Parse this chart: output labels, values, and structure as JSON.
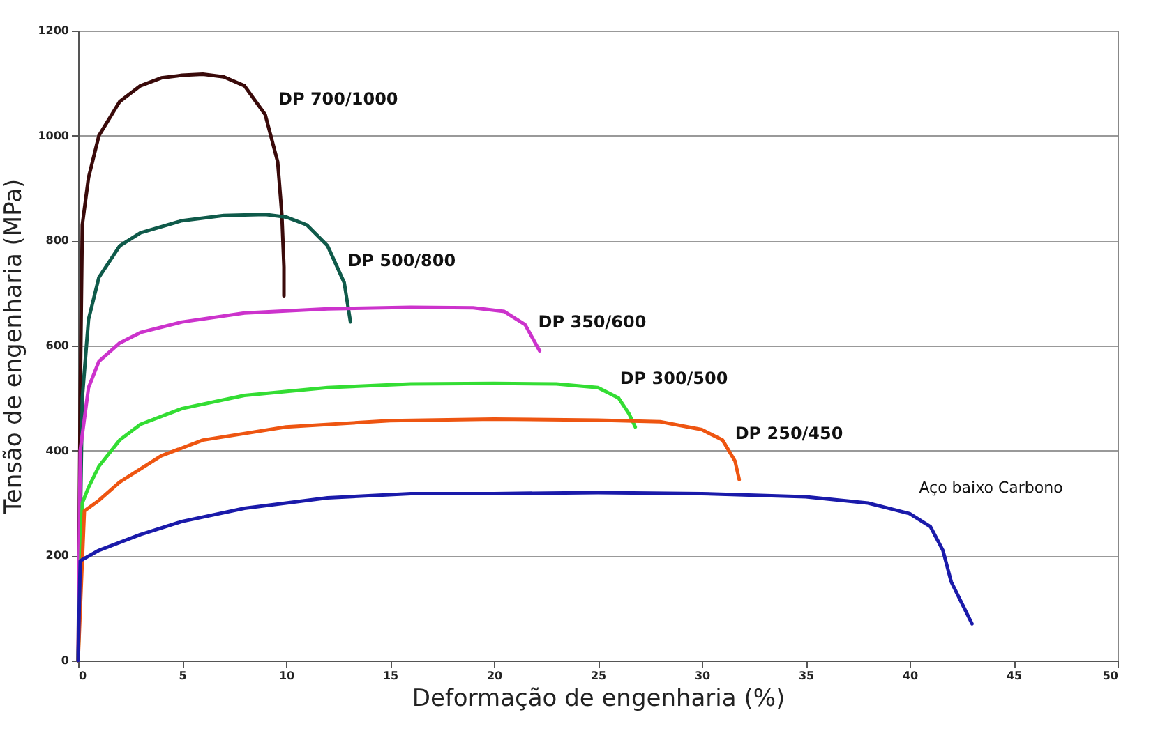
{
  "chart_data": {
    "type": "line",
    "xlabel": "Deformação de engenharia (%)",
    "ylabel": "Tensão de engenharia (MPa)",
    "xlim": [
      0,
      50
    ],
    "xticks": [
      0,
      5,
      10,
      15,
      20,
      25,
      30,
      35,
      40,
      45,
      50
    ],
    "ylim": [
      0,
      1200
    ],
    "yticks": [
      0,
      200,
      400,
      600,
      800,
      1000,
      1200
    ],
    "grid": "y",
    "legend": false,
    "marker": "none",
    "line_style": "solid",
    "series": [
      {
        "name": "DP 700/1000",
        "color": "#3a0a0a",
        "x": [
          0,
          0.1,
          0.2,
          0.5,
          1,
          2,
          3,
          4,
          5,
          6,
          7,
          8,
          9,
          9.6,
          9.8,
          9.9,
          9.9
        ],
        "values": [
          0,
          500,
          830,
          920,
          1000,
          1065,
          1095,
          1110,
          1115,
          1117,
          1112,
          1095,
          1040,
          950,
          850,
          750,
          695
        ]
      },
      {
        "name": "DP 500/800",
        "color": "#0f5a4a",
        "x": [
          0,
          0.2,
          0.5,
          1,
          2,
          3,
          5,
          7,
          9,
          10,
          11,
          12,
          12.8,
          13.1
        ],
        "values": [
          0,
          500,
          650,
          730,
          790,
          815,
          838,
          848,
          850,
          845,
          830,
          790,
          720,
          645
        ]
      },
      {
        "name": "DP 350/600",
        "color": "#cc33cc",
        "x": [
          0,
          0.1,
          0.5,
          1,
          2,
          3,
          5,
          8,
          12,
          16,
          19,
          20.5,
          21.5,
          22.2
        ],
        "values": [
          0,
          400,
          520,
          570,
          605,
          625,
          645,
          662,
          670,
          673,
          672,
          665,
          640,
          590
        ]
      },
      {
        "name": "DP 300/500",
        "color": "#33dd33",
        "x": [
          0,
          0.2,
          0.5,
          1,
          2,
          3,
          5,
          8,
          12,
          16,
          20,
          23,
          25,
          26,
          26.5,
          26.8
        ],
        "values": [
          0,
          300,
          330,
          370,
          420,
          450,
          480,
          505,
          520,
          527,
          528,
          527,
          520,
          500,
          470,
          445
        ]
      },
      {
        "name": "DP 250/450",
        "color": "#ee5511",
        "x": [
          0,
          0.3,
          1,
          2,
          4,
          6,
          10,
          15,
          20,
          25,
          28,
          30,
          31,
          31.6,
          31.8
        ],
        "values": [
          0,
          285,
          305,
          340,
          390,
          420,
          445,
          457,
          460,
          458,
          455,
          440,
          420,
          380,
          345
        ]
      },
      {
        "name": "Aço baixo Carbono",
        "color": "#1a1aaa",
        "x": [
          0,
          0.1,
          1,
          3,
          5,
          8,
          12,
          16,
          20,
          25,
          30,
          35,
          38,
          40,
          41,
          41.6,
          42,
          42.5,
          43
        ],
        "values": [
          0,
          190,
          210,
          240,
          265,
          290,
          310,
          318,
          318,
          320,
          318,
          312,
          300,
          280,
          255,
          210,
          150,
          110,
          70
        ]
      }
    ]
  }
}
